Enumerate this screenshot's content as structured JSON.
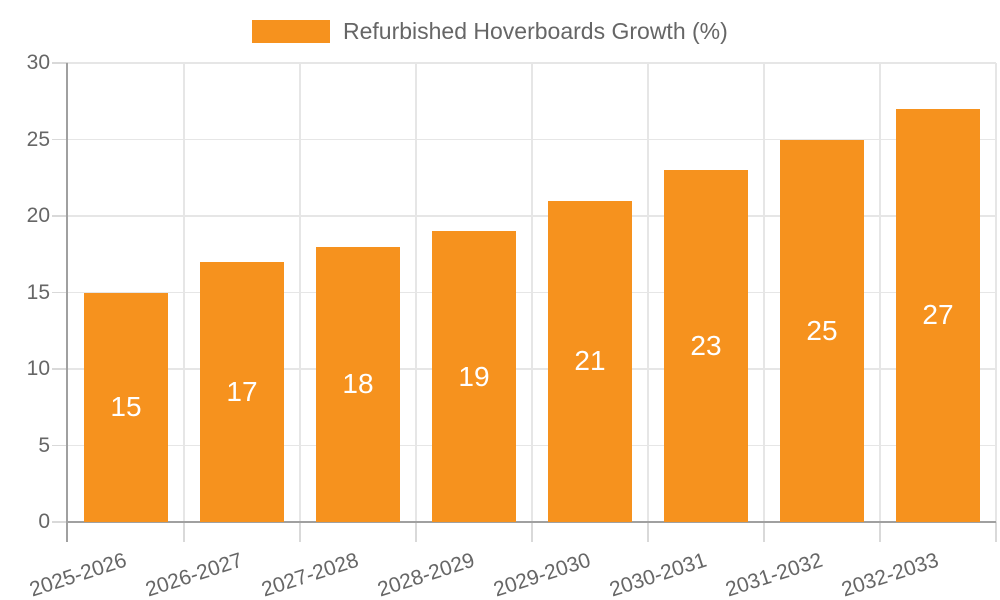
{
  "legend": {
    "label": "Refurbished Hoverboards Growth (%)"
  },
  "chart_data": {
    "type": "bar",
    "title": "Refurbished Hoverboards Growth (%)",
    "series_name": "Refurbished Hoverboards Growth (%)",
    "categories": [
      "2025-2026",
      "2026-2027",
      "2027-2028",
      "2028-2029",
      "2029-2030",
      "2030-2031",
      "2031-2032",
      "2032-2033"
    ],
    "values": [
      15,
      17,
      18,
      19,
      21,
      23,
      25,
      27
    ],
    "bar_value_labels": [
      "15",
      "17",
      "18",
      "19",
      "21",
      "23",
      "25",
      "27"
    ],
    "xlabel": "",
    "ylabel": "",
    "ylim": [
      0,
      30
    ],
    "y_ticks": [
      0,
      5,
      10,
      15,
      20,
      25,
      30
    ],
    "grid": true,
    "legend_position": "top-center",
    "x_label_rotation_deg": -18
  },
  "colors": {
    "bar": "#F6921E",
    "bar_label": "#FFFFFF",
    "axis_text": "#666666",
    "legend_text": "#666666",
    "axis_line": "#A0A0A0",
    "gridline": "#E6E6E6",
    "tick": "#D9D9D9",
    "background": "#FFFFFF"
  }
}
